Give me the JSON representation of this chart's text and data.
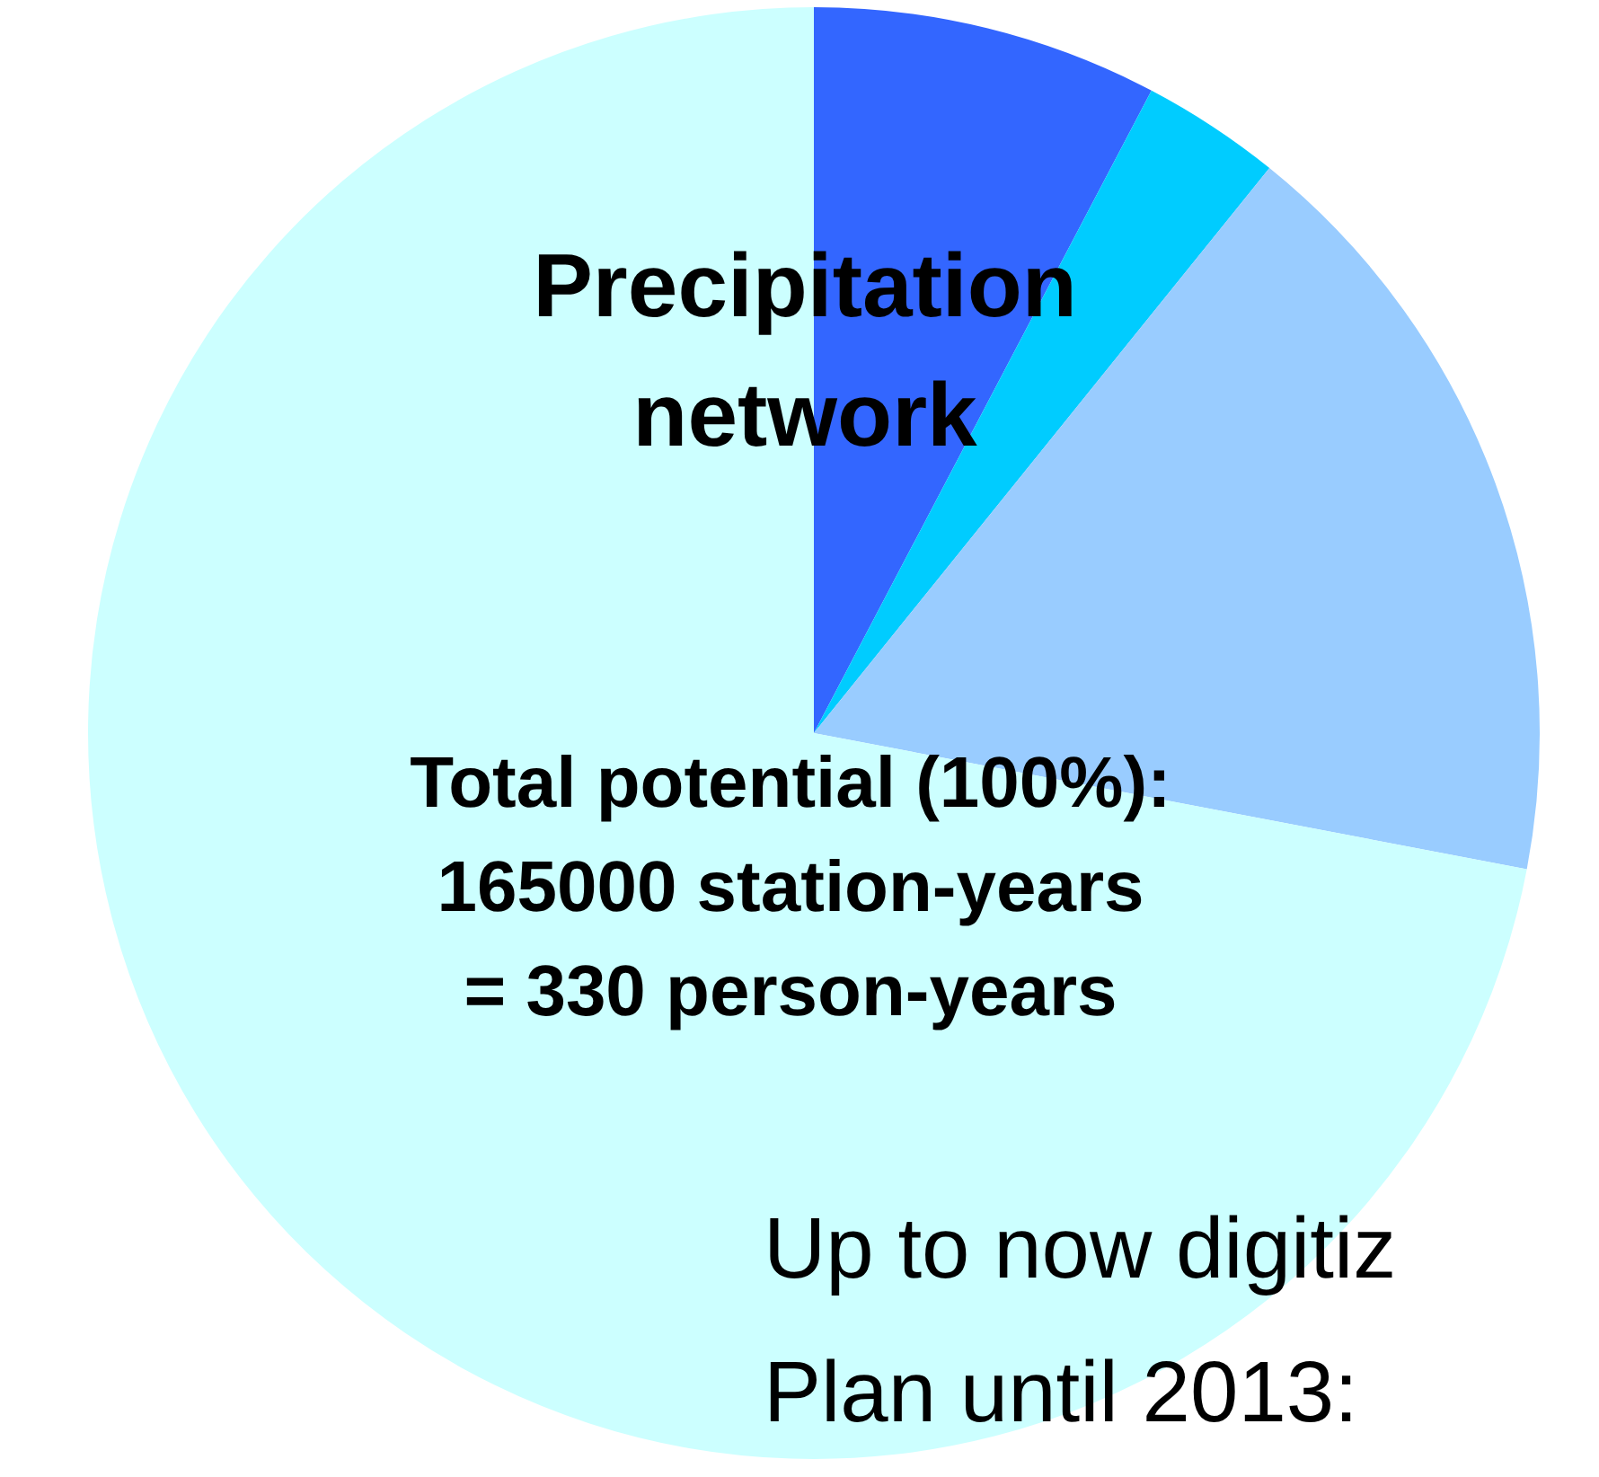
{
  "chart_data": {
    "type": "pie",
    "title": "Precipitation network",
    "categories": [
      null,
      null,
      null,
      null
    ],
    "values": [
      7.7,
      3.1,
      17.2,
      72.0
    ],
    "colors": [
      "#3366ff",
      "#00ccff",
      "#99ccff",
      "#ccffff"
    ],
    "legend": false,
    "annotations": [
      "Total potential (100%):",
      "165000 station-years",
      "= 330 person-years",
      "Up to now digitiz",
      "Plan until 2013:"
    ]
  }
}
